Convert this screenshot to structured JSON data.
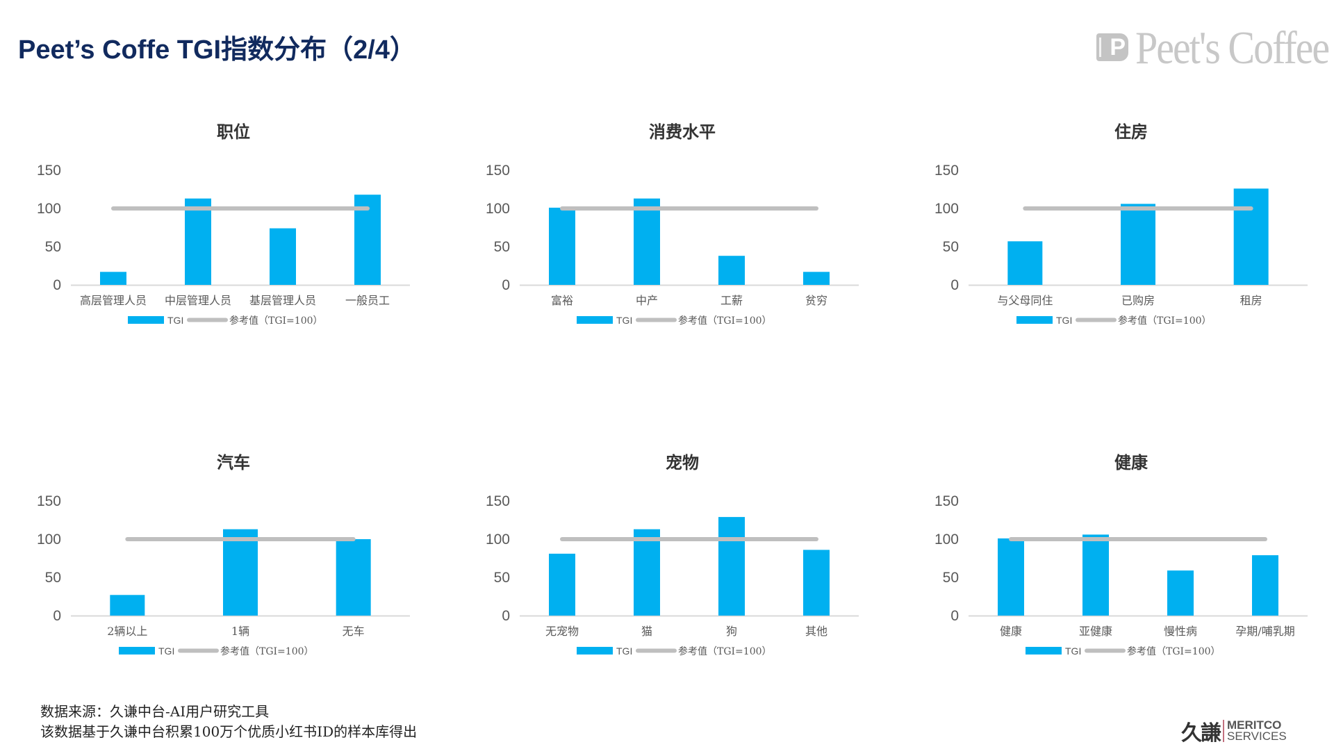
{
  "header": {
    "title": "Peet’s Coffe TGI指数分布（2/4）",
    "brand_logo_text": "Peet's Coffee"
  },
  "legend": {
    "bar_label": "TGI",
    "line_label": "参考值（TGI=100）"
  },
  "colors": {
    "bar": "#00b0f0",
    "reference_line": "#bfbfbf",
    "axis": "#d9d9d9",
    "title": "#112a5e"
  },
  "chart_data": [
    {
      "type": "bar",
      "title": "职位",
      "categories": [
        "高层管理人员",
        "中层管理人员",
        "基层管理人员",
        "一般员工"
      ],
      "series": [
        {
          "name": "TGI",
          "type": "bar",
          "values": [
            17,
            113,
            74,
            118
          ]
        },
        {
          "name": "参考值（TGI=100）",
          "type": "line",
          "values": [
            100,
            100,
            100,
            100
          ]
        }
      ],
      "yticks": [
        0,
        50,
        100,
        150
      ],
      "ylim": [
        0,
        150
      ],
      "grid": false,
      "legend_position": "bottom"
    },
    {
      "type": "bar",
      "title": "消费水平",
      "categories": [
        "富裕",
        "中产",
        "工薪",
        "贫穷"
      ],
      "series": [
        {
          "name": "TGI",
          "type": "bar",
          "values": [
            101,
            113,
            38,
            17
          ]
        },
        {
          "name": "参考值（TGI=100）",
          "type": "line",
          "values": [
            100,
            100,
            100,
            100
          ]
        }
      ],
      "yticks": [
        0,
        50,
        100,
        150
      ],
      "ylim": [
        0,
        150
      ],
      "grid": false,
      "legend_position": "bottom"
    },
    {
      "type": "bar",
      "title": "住房",
      "categories": [
        "与父母同住",
        "已购房",
        "租房"
      ],
      "series": [
        {
          "name": "TGI",
          "type": "bar",
          "values": [
            57,
            106,
            126
          ]
        },
        {
          "name": "参考值（TGI=100）",
          "type": "line",
          "values": [
            100,
            100,
            100
          ]
        }
      ],
      "yticks": [
        0,
        50,
        100,
        150
      ],
      "ylim": [
        0,
        150
      ],
      "grid": false,
      "legend_position": "bottom"
    },
    {
      "type": "bar",
      "title": "汽车",
      "categories": [
        "2辆以上",
        "1辆",
        "无车"
      ],
      "series": [
        {
          "name": "TGI",
          "type": "bar",
          "values": [
            27,
            113,
            100
          ]
        },
        {
          "name": "参考值（TGI=100）",
          "type": "line",
          "values": [
            100,
            100,
            100
          ]
        }
      ],
      "yticks": [
        0,
        50,
        100,
        150
      ],
      "ylim": [
        0,
        150
      ],
      "grid": false,
      "legend_position": "bottom"
    },
    {
      "type": "bar",
      "title": "宠物",
      "categories": [
        "无宠物",
        "猫",
        "狗",
        "其他"
      ],
      "series": [
        {
          "name": "TGI",
          "type": "bar",
          "values": [
            81,
            113,
            129,
            86
          ]
        },
        {
          "name": "参考值（TGI=100）",
          "type": "line",
          "values": [
            100,
            100,
            100,
            100
          ]
        }
      ],
      "yticks": [
        0,
        50,
        100,
        150
      ],
      "ylim": [
        0,
        150
      ],
      "grid": false,
      "legend_position": "bottom"
    },
    {
      "type": "bar",
      "title": "健康",
      "categories": [
        "健康",
        "亚健康",
        "慢性病",
        "孕期/哺乳期"
      ],
      "series": [
        {
          "name": "TGI",
          "type": "bar",
          "values": [
            101,
            106,
            59,
            79
          ]
        },
        {
          "name": "参考值（TGI=100）",
          "type": "line",
          "values": [
            100,
            100,
            100,
            100
          ]
        }
      ],
      "yticks": [
        0,
        50,
        100,
        150
      ],
      "ylim": [
        0,
        150
      ],
      "grid": false,
      "legend_position": "bottom"
    }
  ],
  "footer": {
    "source_line": "数据来源：久谦中台-AI用户研究工具",
    "note_line": "该数据基于久谦中台积累100万个优质小红书ID的样本库得出",
    "logo_cn": "久謙",
    "logo_en_1": "MERITCO",
    "logo_en_2": "SERVICES"
  }
}
